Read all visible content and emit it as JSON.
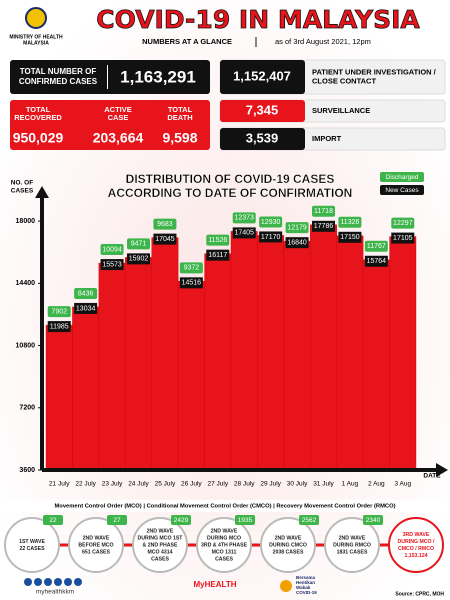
{
  "header": {
    "ministry": [
      "MINISTRY OF HEALTH",
      "MALAYSIA"
    ],
    "title": "COVID-19 IN MALAYSIA",
    "subtitle": "NUMBERS AT A GLANCE",
    "date": "as of 3rd August 2021, 12pm"
  },
  "stats": {
    "confirmed": {
      "label": [
        "TOTAL NUMBER OF",
        "CONFIRMED CASES"
      ],
      "value": "1,163,291"
    },
    "breakdown": [
      {
        "label": [
          "TOTAL",
          "RECOVERED"
        ],
        "value": "950,029"
      },
      {
        "label": [
          "ACTIVE",
          "CASE"
        ],
        "value": "203,664"
      },
      {
        "label": [
          "TOTAL",
          "DEATH"
        ],
        "value": "9,598"
      }
    ],
    "sources": [
      {
        "value": "1,152,407",
        "label": [
          "PATIENT UNDER INVESTIGATION /",
          "CLOSE CONTACT"
        ],
        "color": "#111111"
      },
      {
        "value": "7,345",
        "label": [
          "SURVEILLANCE"
        ],
        "color": "#e8141b"
      },
      {
        "value": "3,539",
        "label": [
          "IMPORT"
        ],
        "color": "#111111"
      }
    ]
  },
  "chart_data": {
    "type": "bar",
    "title": [
      "DISTRIBUTION OF COVID-19 CASES",
      "ACCORDING TO DATE OF CONFIRMATION"
    ],
    "ylabel": [
      "NO. OF",
      "CASES"
    ],
    "xlabel": "DATE",
    "categories": [
      "21 July",
      "22 July",
      "23 July",
      "24 July",
      "25 July",
      "26 July",
      "27 July",
      "28 July",
      "29 July",
      "30 July",
      "31 July",
      "1 Aug",
      "2 Aug",
      "3 Aug"
    ],
    "series": [
      {
        "name": "New Cases",
        "color": "#e8141b",
        "values": [
          11985,
          13034,
          15573,
          15902,
          17045,
          14516,
          16117,
          17405,
          17170,
          16840,
          17786,
          17150,
          15764,
          17105
        ]
      },
      {
        "name": "Discharged",
        "color": "#3db54a",
        "values": [
          7902,
          8436,
          10094,
          9471,
          9683,
          9372,
          11526,
          12373,
          12930,
          12179,
          11718,
          11326,
          11767,
          12297
        ]
      }
    ],
    "ylim": [
      3600,
      19800
    ],
    "yticks": [
      3600,
      7200,
      10800,
      14400,
      18000
    ]
  },
  "waves": {
    "legend": "Movement Control Order (MCO) | Conditional Movement Control Order (CMCO) | Recovery Movement Control Order (RMCO)",
    "items": [
      {
        "badge": "22",
        "lines": [
          "1ST WAVE",
          "22 CASES"
        ]
      },
      {
        "badge": "27",
        "lines": [
          "2ND WAVE",
          "BEFORE MCO",
          "651 CASES"
        ]
      },
      {
        "badge": "2429",
        "lines": [
          "2ND WAVE",
          "DURING MCO 1ST",
          "& 2ND PHASE",
          "MCO 4314",
          "CASES"
        ]
      },
      {
        "badge": "1935",
        "lines": [
          "2ND WAVE",
          "DURING MCO",
          "3RD & 4TH PHASE",
          "MCO 1311",
          "CASES"
        ]
      },
      {
        "badge": "2562",
        "lines": [
          "2ND WAVE",
          "DURING CMCO",
          "2038 CASES"
        ]
      },
      {
        "badge": "2340",
        "lines": [
          "2ND WAVE",
          "DURING RMCO",
          "1831 CASES"
        ]
      },
      {
        "badge": "",
        "lines": [
          "3RD WAVE",
          "DURING MCO /",
          "CMCO / RMCO",
          "1,153,124"
        ]
      }
    ]
  },
  "footer": {
    "handle": "myhealthkkm",
    "myhealth": "MyHEALTH",
    "campaign": [
      "Bersama",
      "Hentikan",
      "Wabak",
      "COVID-19"
    ],
    "source": "Source: CPRC, MOH"
  }
}
